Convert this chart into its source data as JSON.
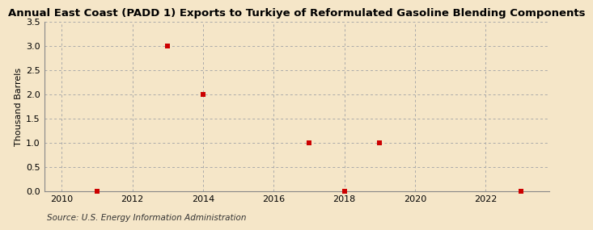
{
  "title": "Annual East Coast (PADD 1) Exports to Turkiye of Reformulated Gasoline Blending Components",
  "ylabel": "Thousand Barrels",
  "source": "Source: U.S. Energy Information Administration",
  "background_color": "#f5e6c8",
  "plot_background_color": "#f5e6c8",
  "x_data": [
    2011,
    2013,
    2014,
    2017,
    2018,
    2019,
    2023
  ],
  "y_data": [
    0.0,
    3.0,
    2.0,
    1.0,
    0.0,
    1.0,
    0.0
  ],
  "marker_color": "#cc0000",
  "marker_size": 4,
  "xlim": [
    2009.5,
    2023.8
  ],
  "ylim": [
    0,
    3.5
  ],
  "yticks": [
    0.0,
    0.5,
    1.0,
    1.5,
    2.0,
    2.5,
    3.0,
    3.5
  ],
  "xticks": [
    2010,
    2012,
    2014,
    2016,
    2018,
    2020,
    2022
  ],
  "grid_color": "#aaaaaa",
  "title_fontsize": 9.5,
  "axis_fontsize": 8,
  "tick_fontsize": 8,
  "source_fontsize": 7.5
}
